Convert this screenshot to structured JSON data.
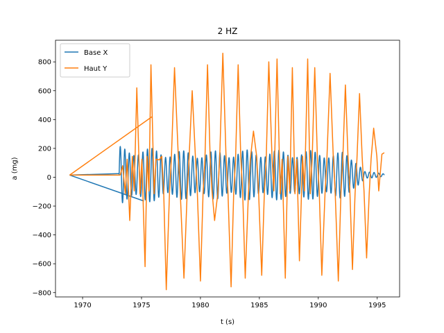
{
  "chart_data": {
    "type": "line",
    "title": "2 HZ",
    "xlabel": "t (s)",
    "ylabel": "a (mg)",
    "xlim": [
      1967.7,
      1996.9
    ],
    "ylim": [
      -830,
      950
    ],
    "xticks": [
      1970,
      1975,
      1980,
      1985,
      1990,
      1995
    ],
    "yticks": [
      -800,
      -600,
      -400,
      -200,
      0,
      200,
      400,
      600,
      800
    ],
    "grid": false,
    "legend": "top-left",
    "series": [
      {
        "name": "Base X",
        "color": "#1f77b4",
        "envelope": {
          "x": [
            1973.1,
            1974.0,
            1975.0,
            1976.0,
            1977.0,
            1978.0,
            1980.0,
            1982.0,
            1984.0,
            1986.0,
            1988.0,
            1990.0,
            1992.0,
            1993.3,
            1994.0,
            1995.6
          ],
          "amp": [
            200,
            195,
            190,
            185,
            175,
            170,
            165,
            170,
            175,
            175,
            170,
            170,
            160,
            110,
            25,
            10
          ]
        },
        "segments": [
          {
            "x": [
              1968.9,
              1973.1
            ],
            "y": [
              15,
              25
            ]
          },
          {
            "x": [
              1968.9,
              1975.2
            ],
            "y": [
              15,
              -165
            ]
          }
        ]
      },
      {
        "name": "Haut Y",
        "color": "#ff7f0e",
        "peaks": {
          "x": [
            1973.4,
            1974.0,
            1974.6,
            1975.3,
            1975.8,
            1976.5,
            1977.1,
            1977.8,
            1978.6,
            1979.3,
            1980.0,
            1980.6,
            1981.2,
            1981.9,
            1982.6,
            1983.2,
            1983.8,
            1984.5,
            1985.2,
            1985.8,
            1986.5,
            1987.2,
            1987.8,
            1988.4,
            1989.1,
            1989.7,
            1990.3,
            1991.0,
            1991.7,
            1992.3,
            1992.9,
            1993.5,
            1994.1,
            1994.7,
            1995.4
          ],
          "y": [
            80,
            -300,
            620,
            -620,
            780,
            120,
            -780,
            760,
            -700,
            600,
            -720,
            780,
            -300,
            860,
            -760,
            780,
            -700,
            320,
            -680,
            800,
            820,
            -700,
            760,
            -580,
            820,
            760,
            -680,
            720,
            -720,
            640,
            -640,
            580,
            -560,
            340,
            160
          ]
        },
        "segments": [
          {
            "x": [
              1968.9,
              1975.9
            ],
            "y": [
              15,
              420
            ]
          },
          {
            "x": [
              1968.9,
              1973.2
            ],
            "y": [
              15,
              15
            ]
          }
        ]
      }
    ]
  }
}
